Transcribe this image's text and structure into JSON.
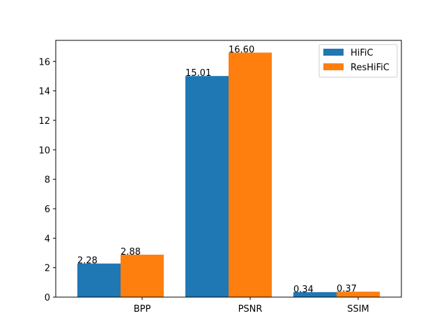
{
  "chart_data": {
    "type": "bar",
    "categories": [
      "BPP",
      "PSNR",
      "SSIM"
    ],
    "series": [
      {
        "name": "HiFiC",
        "values": [
          2.28,
          15.01,
          0.34
        ],
        "labels": [
          "2.28",
          "15.01",
          "0.34"
        ],
        "color": "#1f77b4"
      },
      {
        "name": "ResHiFiC",
        "values": [
          2.88,
          16.6,
          0.37
        ],
        "labels": [
          "2.88",
          "16.60",
          "0.37"
        ],
        "color": "#ff7f0e"
      }
    ],
    "yticks": [
      "0",
      "2",
      "4",
      "6",
      "8",
      "10",
      "12",
      "14",
      "16"
    ],
    "ylim": [
      0,
      17.43
    ],
    "grid": false,
    "legend_position": "top-right"
  }
}
